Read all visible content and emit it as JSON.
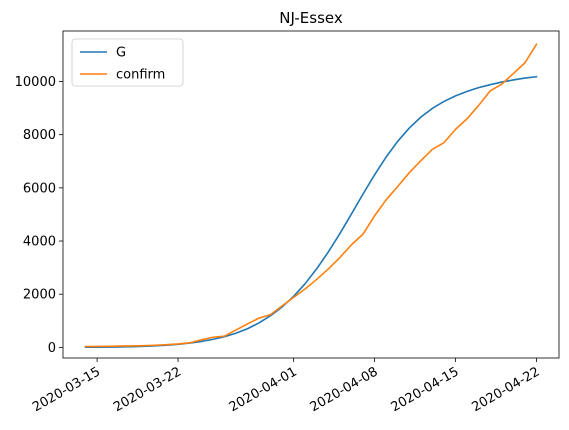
{
  "chart_data": {
    "type": "line",
    "title": "NJ-Essex",
    "xlabel": "",
    "ylabel": "",
    "x_dates": [
      "2020-03-14",
      "2020-03-15",
      "2020-03-16",
      "2020-03-17",
      "2020-03-18",
      "2020-03-19",
      "2020-03-20",
      "2020-03-21",
      "2020-03-22",
      "2020-03-23",
      "2020-03-24",
      "2020-03-25",
      "2020-03-26",
      "2020-03-27",
      "2020-03-28",
      "2020-03-29",
      "2020-03-30",
      "2020-03-31",
      "2020-04-01",
      "2020-04-02",
      "2020-04-03",
      "2020-04-04",
      "2020-04-05",
      "2020-04-06",
      "2020-04-07",
      "2020-04-08",
      "2020-04-09",
      "2020-04-10",
      "2020-04-11",
      "2020-04-12",
      "2020-04-13",
      "2020-04-14",
      "2020-04-15",
      "2020-04-16",
      "2020-04-17",
      "2020-04-18",
      "2020-04-19",
      "2020-04-20",
      "2020-04-21",
      "2020-04-22"
    ],
    "x_ticks": [
      "2020-03-15",
      "2020-03-22",
      "2020-04-01",
      "2020-04-08",
      "2020-04-15",
      "2020-04-22"
    ],
    "ylim": [
      -400,
      11900
    ],
    "y_ticks": [
      0,
      2000,
      4000,
      6000,
      8000,
      10000
    ],
    "legend_position": "upper-left",
    "series": [
      {
        "name": "G",
        "color": "#1f77b4",
        "values": [
          5,
          8,
          12,
          18,
          27,
          40,
          58,
          82,
          115,
          160,
          220,
          300,
          400,
          530,
          700,
          920,
          1190,
          1520,
          1920,
          2400,
          2960,
          3590,
          4280,
          5020,
          5770,
          6490,
          7160,
          7750,
          8250,
          8660,
          8990,
          9250,
          9460,
          9630,
          9770,
          9880,
          9980,
          10060,
          10130,
          10180
        ]
      },
      {
        "name": "confirm",
        "color": "#ff7f0e",
        "values": [
          30,
          35,
          40,
          48,
          55,
          65,
          80,
          100,
          130,
          170,
          280,
          380,
          420,
          650,
          880,
          1100,
          1230,
          1560,
          1880,
          2200,
          2560,
          2950,
          3380,
          3860,
          4260,
          4950,
          5550,
          6050,
          6570,
          7020,
          7450,
          7700,
          8200,
          8600,
          9100,
          9650,
          9900,
          10300,
          10700,
          11400
        ]
      }
    ]
  }
}
